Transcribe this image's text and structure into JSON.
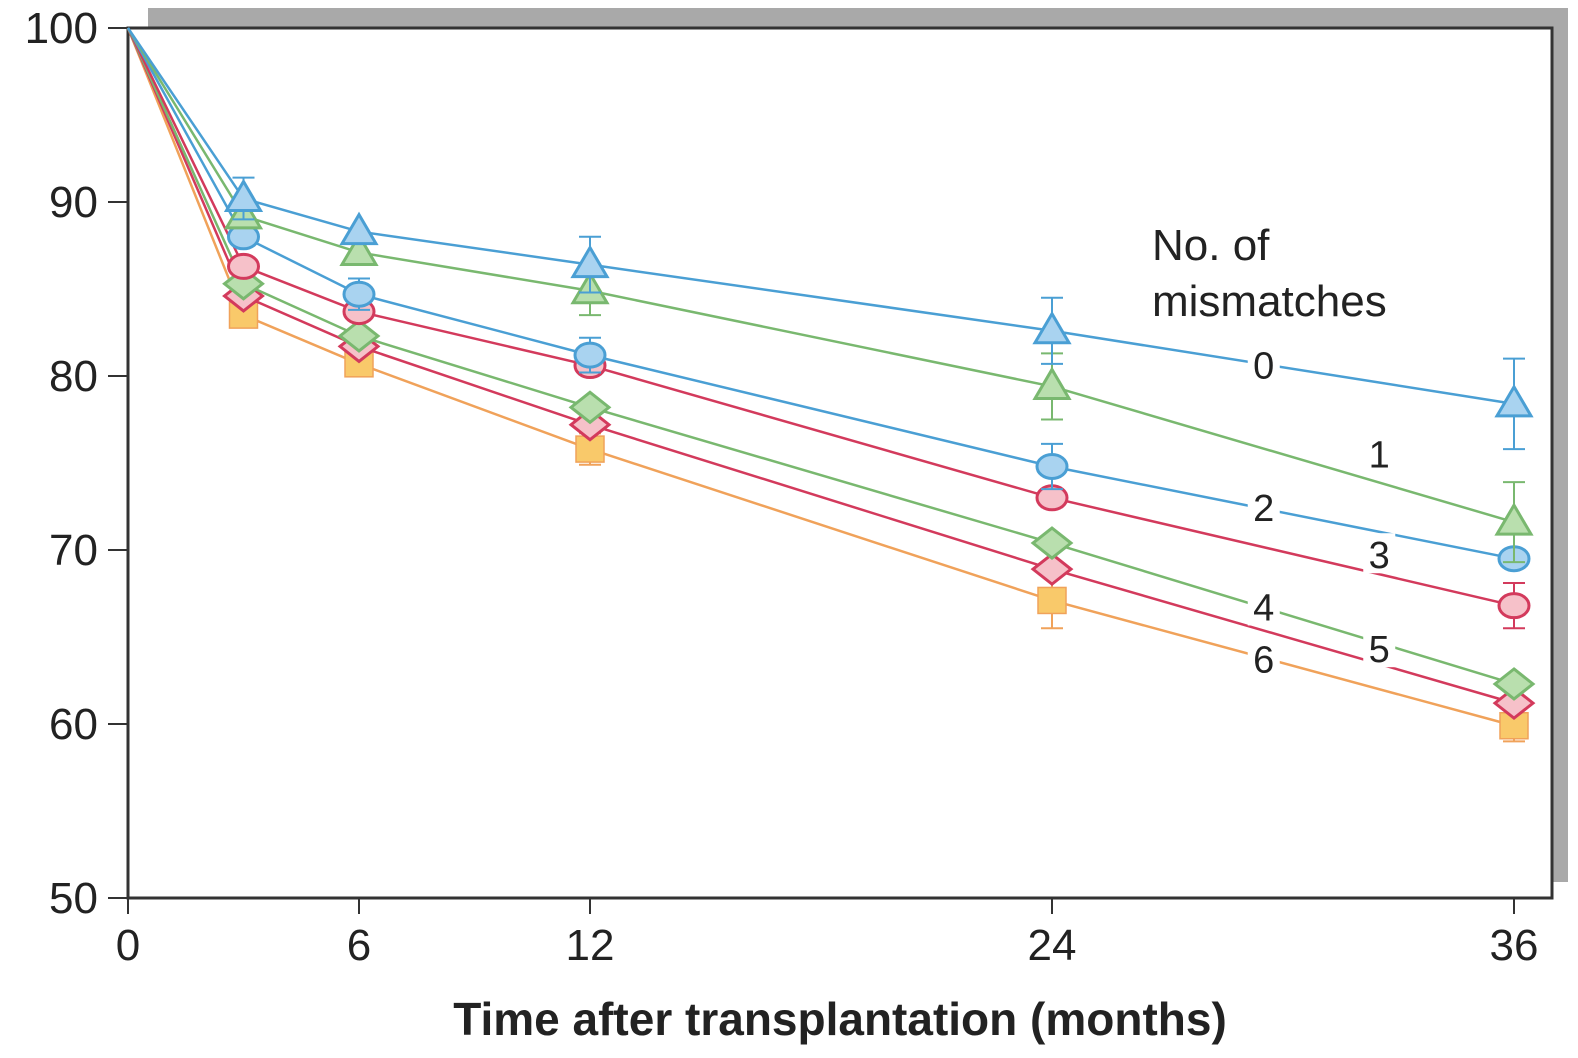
{
  "chart_data": {
    "type": "line",
    "title": "",
    "xlabel": "Time after transplantation (months)",
    "ylabel": "",
    "x_ticks": [
      0,
      6,
      12,
      24,
      36
    ],
    "y_ticks": [
      50,
      60,
      70,
      80,
      90,
      100
    ],
    "xlim": [
      0,
      36
    ],
    "ylim": [
      50,
      100
    ],
    "grid": false,
    "legend_title": [
      "No. of",
      "mismatches"
    ],
    "series": [
      {
        "name": "0",
        "marker": "triangle",
        "color": "#4a9fd4",
        "fill": "#a9d3f0",
        "x": [
          0,
          3,
          6,
          12,
          24,
          36
        ],
        "y": [
          100,
          90.2,
          88.3,
          86.4,
          82.6,
          78.4
        ],
        "errors": [
          [
            3,
            1.2
          ],
          [
            12,
            1.6
          ],
          [
            24,
            1.9
          ],
          [
            36,
            2.6
          ]
        ]
      },
      {
        "name": "1",
        "marker": "triangle",
        "color": "#79b86f",
        "fill": "#b9dfae",
        "x": [
          0,
          3,
          6,
          12,
          24,
          36
        ],
        "y": [
          100,
          89.2,
          87.1,
          84.9,
          79.4,
          71.6
        ],
        "errors": [
          [
            12,
            1.4
          ],
          [
            24,
            1.9
          ],
          [
            36,
            2.3
          ]
        ]
      },
      {
        "name": "2",
        "marker": "circle",
        "color": "#4a9fd4",
        "fill": "#a9d3f0",
        "x": [
          0,
          3,
          6,
          12,
          24,
          36
        ],
        "y": [
          100,
          88.0,
          84.7,
          81.2,
          74.8,
          69.5
        ],
        "errors": [
          [
            6,
            0.9
          ],
          [
            12,
            1.0
          ],
          [
            24,
            1.3
          ]
        ]
      },
      {
        "name": "3",
        "marker": "circle",
        "color": "#d33a5c",
        "fill": "#f6c1c9",
        "x": [
          0,
          3,
          6,
          12,
          24,
          36
        ],
        "y": [
          100,
          86.3,
          83.7,
          80.6,
          73.0,
          66.8
        ],
        "errors": [
          [
            36,
            1.3
          ]
        ]
      },
      {
        "name": "4",
        "marker": "diamond",
        "color": "#79b86f",
        "fill": "#b9dfae",
        "x": [
          0,
          3,
          6,
          12,
          24,
          36
        ],
        "y": [
          100,
          85.3,
          82.3,
          78.2,
          70.4,
          62.3
        ],
        "errors": []
      },
      {
        "name": "5",
        "marker": "diamond",
        "color": "#d33a5c",
        "fill": "#f6c1c9",
        "x": [
          0,
          3,
          6,
          12,
          24,
          36
        ],
        "y": [
          100,
          84.6,
          81.7,
          77.2,
          68.9,
          61.2
        ],
        "errors": []
      },
      {
        "name": "6",
        "marker": "square",
        "color": "#f0a25a",
        "fill": "#f9c96a",
        "x": [
          0,
          3,
          6,
          12,
          24,
          36
        ],
        "y": [
          100,
          83.5,
          80.7,
          75.8,
          67.1,
          59.9
        ],
        "errors": [
          [
            12,
            0.9
          ],
          [
            24,
            1.6
          ],
          [
            36,
            0.9
          ]
        ]
      }
    ],
    "series_labels": [
      {
        "text": "0",
        "x": 29.5,
        "y": 80.6
      },
      {
        "text": "1",
        "x": 32.5,
        "y": 75.5
      },
      {
        "text": "2",
        "x": 29.5,
        "y": 72.4
      },
      {
        "text": "3",
        "x": 32.5,
        "y": 69.7
      },
      {
        "text": "4",
        "x": 29.5,
        "y": 66.7
      },
      {
        "text": "5",
        "x": 32.5,
        "y": 64.3
      },
      {
        "text": "6",
        "x": 29.5,
        "y": 63.7
      }
    ]
  }
}
